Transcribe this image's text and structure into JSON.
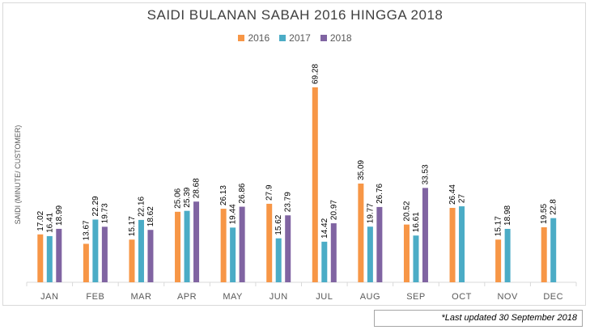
{
  "chart_data": {
    "type": "bar",
    "title": "SAIDI BULANAN SABAH 2016 HINGGA 2018",
    "ylabel": "SAIDI (MINUTE/ CUSTOMER)",
    "xlabel": "",
    "categories": [
      "JAN",
      "FEB",
      "MAR",
      "APR",
      "MAY",
      "JUN",
      "JUL",
      "AUG",
      "SEP",
      "OCT",
      "NOV",
      "DEC"
    ],
    "series": [
      {
        "name": "2016",
        "color": "#f79646",
        "values": [
          17.02,
          13.67,
          15.17,
          25.06,
          26.13,
          27.9,
          69.28,
          35.09,
          20.52,
          26.44,
          15.17,
          19.55
        ]
      },
      {
        "name": "2017",
        "color": "#4bacc6",
        "values": [
          16.41,
          22.29,
          22.16,
          25.39,
          19.44,
          15.62,
          14.42,
          19.77,
          16.61,
          27,
          18.98,
          22.8
        ]
      },
      {
        "name": "2018",
        "color": "#8064a2",
        "values": [
          18.99,
          19.73,
          18.62,
          28.68,
          26.86,
          23.79,
          20.97,
          26.76,
          33.53,
          null,
          null,
          null
        ]
      }
    ],
    "grid": false,
    "legend": "top-center"
  },
  "footnote": "*Last updated 30 September 2018"
}
